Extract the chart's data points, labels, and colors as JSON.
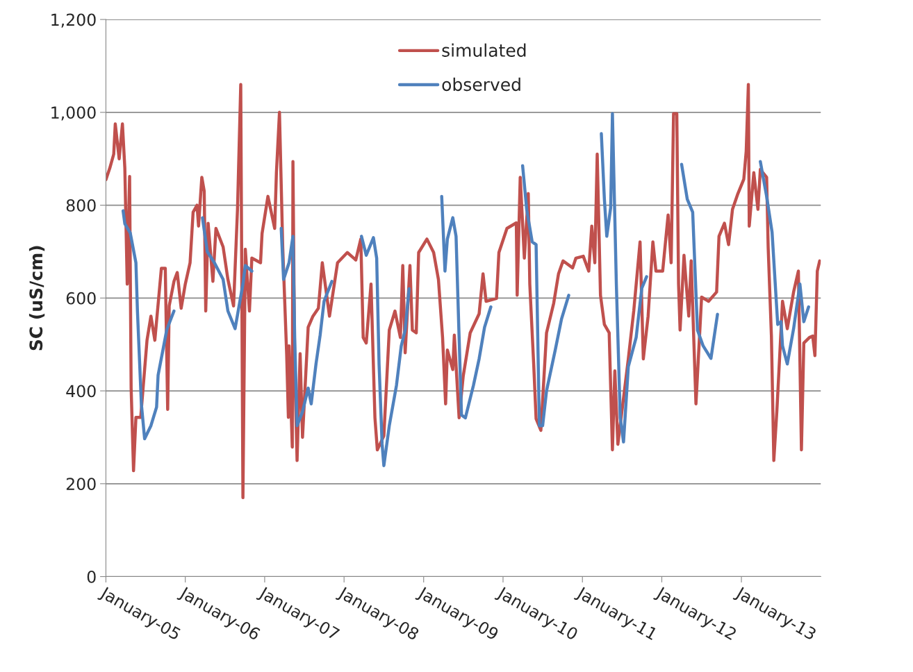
{
  "chart_data": {
    "type": "line",
    "ylabel": "SC (uS/cm)",
    "xlim": [
      "2005-01-01",
      "2014-01-01"
    ],
    "xticks": [
      {
        "value": "2005-01-01",
        "label": "January-05"
      },
      {
        "value": "2006-01-01",
        "label": "January-06"
      },
      {
        "value": "2007-01-01",
        "label": "January-07"
      },
      {
        "value": "2008-01-01",
        "label": "January-08"
      },
      {
        "value": "2009-01-01",
        "label": "January-09"
      },
      {
        "value": "2010-01-01",
        "label": "January-10"
      },
      {
        "value": "2011-01-01",
        "label": "January-11"
      },
      {
        "value": "2012-01-01",
        "label": "January-12"
      },
      {
        "value": "2013-01-01",
        "label": "January-13"
      }
    ],
    "ylim": [
      0,
      1200
    ],
    "yticks": [
      0,
      200,
      400,
      600,
      800,
      {
        "value": 1000,
        "label": "1,000"
      },
      {
        "value": 1200,
        "label": "1,200"
      }
    ],
    "grid": "y",
    "legend": "top",
    "marker": "none",
    "line_style": "solid",
    "series": [
      {
        "name": "simulated",
        "color": "#c0504d",
        "x": [
          "2005-01-01",
          "2005-01-19",
          "2005-02-06",
          "2005-02-13",
          "2005-03-03",
          "2005-03-18",
          "2005-03-29",
          "2005-04-09",
          "2005-04-20",
          "2005-04-27",
          "2005-05-08",
          "2005-05-19",
          "2005-06-10",
          "2005-07-09",
          "2005-07-27",
          "2005-08-14",
          "2005-09-13",
          "2005-10-01",
          "2005-10-12",
          "2005-10-19",
          "2005-11-10",
          "2005-11-25",
          "2005-12-13",
          "2006-01-01",
          "2006-01-23",
          "2006-02-06",
          "2006-02-24",
          "2006-03-03",
          "2006-03-18",
          "2006-03-29",
          "2006-04-05",
          "2006-04-16",
          "2006-05-08",
          "2006-05-22",
          "2006-06-24",
          "2006-07-16",
          "2006-08-11",
          "2006-08-29",
          "2006-09-13",
          "2006-09-23",
          "2006-10-04",
          "2006-10-23",
          "2006-11-03",
          "2006-12-13",
          "2006-12-20",
          "2007-01-16",
          "2007-02-16",
          "2007-02-24",
          "2007-03-10",
          "2007-03-25",
          "2007-04-12",
          "2007-04-20",
          "2007-04-23",
          "2007-05-08",
          "2007-05-11",
          "2007-05-19",
          "2007-05-30",
          "2007-06-13",
          "2007-06-24",
          "2007-07-20",
          "2007-08-11",
          "2007-09-05",
          "2007-09-23",
          "2007-10-26",
          "2007-12-02",
          "2008-01-16",
          "2008-02-24",
          "2008-03-18",
          "2008-03-29",
          "2008-04-12",
          "2008-05-04",
          "2008-05-22",
          "2008-06-02",
          "2008-07-02",
          "2008-07-27",
          "2008-08-22",
          "2008-09-16",
          "2008-09-27",
          "2008-10-08",
          "2008-10-30",
          "2008-11-10",
          "2008-11-28",
          "2008-12-09",
          "2009-01-16",
          "2009-02-16",
          "2009-03-10",
          "2009-03-29",
          "2009-04-12",
          "2009-04-20",
          "2009-05-15",
          "2009-05-22",
          "2009-06-13",
          "2009-07-02",
          "2009-08-03",
          "2009-09-13",
          "2009-10-01",
          "2009-10-15",
          "2009-12-02",
          "2009-12-13",
          "2010-01-19",
          "2010-03-03",
          "2010-03-07",
          "2010-03-21",
          "2010-04-09",
          "2010-04-27",
          "2010-05-04",
          "2010-05-22",
          "2010-06-02",
          "2010-06-24",
          "2010-07-20",
          "2010-08-22",
          "2010-09-13",
          "2010-10-04",
          "2010-11-17",
          "2010-12-02",
          "2011-01-05",
          "2011-01-30",
          "2011-02-13",
          "2011-02-27",
          "2011-03-10",
          "2011-03-25",
          "2011-04-12",
          "2011-05-04",
          "2011-05-19",
          "2011-05-30",
          "2011-06-13",
          "2011-07-31",
          "2011-08-25",
          "2011-09-23",
          "2011-10-08",
          "2011-10-30",
          "2011-11-21",
          "2011-12-05",
          "2012-01-05",
          "2012-01-30",
          "2012-02-13",
          "2012-02-24",
          "2012-03-10",
          "2012-03-18",
          "2012-03-25",
          "2012-04-12",
          "2012-05-04",
          "2012-05-15",
          "2012-06-06",
          "2012-07-02",
          "2012-08-03",
          "2012-09-09",
          "2012-09-20",
          "2012-10-15",
          "2012-11-03",
          "2012-11-21",
          "2012-12-16",
          "2013-01-12",
          "2013-01-23",
          "2013-02-02",
          "2013-02-06",
          "2013-02-27",
          "2013-03-18",
          "2013-03-29",
          "2013-04-27",
          "2013-05-04",
          "2013-05-19",
          "2013-05-30",
          "2013-06-13",
          "2013-07-09",
          "2013-07-31",
          "2013-08-29",
          "2013-09-20",
          "2013-10-04",
          "2013-10-15",
          "2013-11-10",
          "2013-11-25",
          "2013-12-05",
          "2013-12-16",
          "2013-12-27"
        ],
        "values": [
          855,
          880,
          910,
          975,
          900,
          975,
          880,
          630,
          862,
          406,
          228,
          343,
          343,
          509,
          561,
          509,
          664,
          664,
          360,
          583,
          636,
          655,
          578,
          630,
          676,
          785,
          800,
          755,
          860,
          830,
          572,
          761,
          636,
          750,
          710,
          640,
          583,
          790,
          1060,
          170,
          705,
          572,
          686,
          676,
          739,
          819,
          750,
          870,
          1000,
          710,
          481,
          343,
          497,
          279,
          894,
          458,
          250,
          480,
          300,
          537,
          561,
          578,
          676,
          561,
          676,
          698,
          682,
          727,
          515,
          503,
          630,
          342,
          273,
          303,
          531,
          572,
          515,
          670,
          482,
          670,
          531,
          525,
          698,
          727,
          698,
          640,
          515,
          372,
          488,
          446,
          520,
          342,
          432,
          525,
          566,
          652,
          593,
          599,
          698,
          750,
          762,
          606,
          860,
          686,
          825,
          630,
          457,
          340,
          315,
          525,
          589,
          652,
          680,
          665,
          686,
          690,
          658,
          755,
          676,
          910,
          606,
          543,
          525,
          273,
          443,
          285,
          469,
          572,
          721,
          469,
          561,
          721,
          658,
          658,
          779,
          676,
          997,
          997,
          630,
          531,
          692,
          561,
          680,
          372,
          602,
          593,
          613,
          733,
          761,
          715,
          791,
          825,
          856,
          916,
          1060,
          755,
          870,
          791,
          877,
          860,
          710,
          518,
          250,
          356,
          593,
          534,
          613,
          658,
          273,
          503,
          515,
          518,
          476,
          658,
          680
        ]
      },
      {
        "name": "observed",
        "color": "#4f81bd",
        "x": [
          "2005-03-21",
          "2005-03-29",
          "2005-04-23",
          "2005-05-19",
          "2005-05-26",
          "2005-06-13",
          "2005-06-28",
          "2005-07-27",
          "2005-08-22",
          "2005-08-29",
          "2005-09-23",
          "2005-10-08",
          "2005-11-10",
          "2005-12-13",
          "2006-03-21",
          "2006-04-12",
          "2006-05-15",
          "2006-06-24",
          "2006-07-16",
          "2006-08-18",
          "2006-09-23",
          "2006-10-04",
          "2006-11-03",
          "2006-12-13",
          "2007-03-18",
          "2007-03-29",
          "2007-04-23",
          "2007-05-11",
          "2007-05-19",
          "2007-05-30",
          "2007-06-24",
          "2007-07-20",
          "2007-08-03",
          "2007-08-25",
          "2007-09-13",
          "2007-10-01",
          "2007-11-06",
          "2008-01-01",
          "2008-03-21",
          "2008-04-12",
          "2008-05-15",
          "2008-05-30",
          "2008-06-10",
          "2008-06-24",
          "2008-07-02",
          "2008-07-27",
          "2008-08-29",
          "2008-09-20",
          "2008-10-08",
          "2008-10-26",
          "2009-01-01",
          "2009-03-25",
          "2009-04-09",
          "2009-04-20",
          "2009-05-15",
          "2009-05-30",
          "2009-06-13",
          "2009-06-24",
          "2009-07-12",
          "2009-08-18",
          "2009-09-13",
          "2009-10-08",
          "2009-11-06",
          "2010-01-01",
          "2010-04-01",
          "2010-04-20",
          "2010-05-15",
          "2010-06-02",
          "2010-06-17",
          "2010-07-02",
          "2010-07-20",
          "2010-08-29",
          "2010-09-27",
          "2010-10-30",
          "2011-01-01",
          "2011-03-29",
          "2011-04-12",
          "2011-04-23",
          "2011-05-11",
          "2011-05-19",
          "2011-06-06",
          "2011-06-24",
          "2011-07-09",
          "2011-07-31",
          "2011-09-05",
          "2011-10-01",
          "2011-10-23",
          "2012-01-01",
          "2012-04-01",
          "2012-04-27",
          "2012-05-22",
          "2012-06-13",
          "2012-07-09",
          "2012-08-14",
          "2012-09-13",
          "2013-01-01",
          "2013-03-29",
          "2013-04-27",
          "2013-05-22",
          "2013-06-17",
          "2013-07-02",
          "2013-07-09",
          "2013-07-31",
          "2013-08-29",
          "2013-09-27",
          "2013-10-15",
          "2013-11-06"
        ],
        "values": [
          788,
          760,
          740,
          676,
          572,
          372,
          297,
          325,
          365,
          434,
          495,
          532,
          572,
          null,
          773,
          700,
          676,
          640,
          572,
          534,
          630,
          670,
          658,
          null,
          750,
          640,
          676,
          733,
          515,
          325,
          355,
          406,
          372,
          458,
          520,
          593,
          636,
          null,
          733,
          692,
          730,
          686,
          457,
          285,
          239,
          325,
          412,
          497,
          531,
          620,
          null,
          819,
          658,
          727,
          773,
          733,
          515,
          348,
          342,
          412,
          469,
          537,
          581,
          null,
          885,
          790,
          721,
          715,
          325,
          325,
          400,
          488,
          555,
          606,
          null,
          954,
          813,
          733,
          795,
          997,
          630,
          342,
          290,
          452,
          515,
          621,
          646,
          null,
          888,
          813,
          785,
          531,
          497,
          470,
          565,
          null,
          894,
          819,
          742,
          543,
          549,
          497,
          458,
          534,
          630,
          549,
          581
        ]
      }
    ]
  }
}
